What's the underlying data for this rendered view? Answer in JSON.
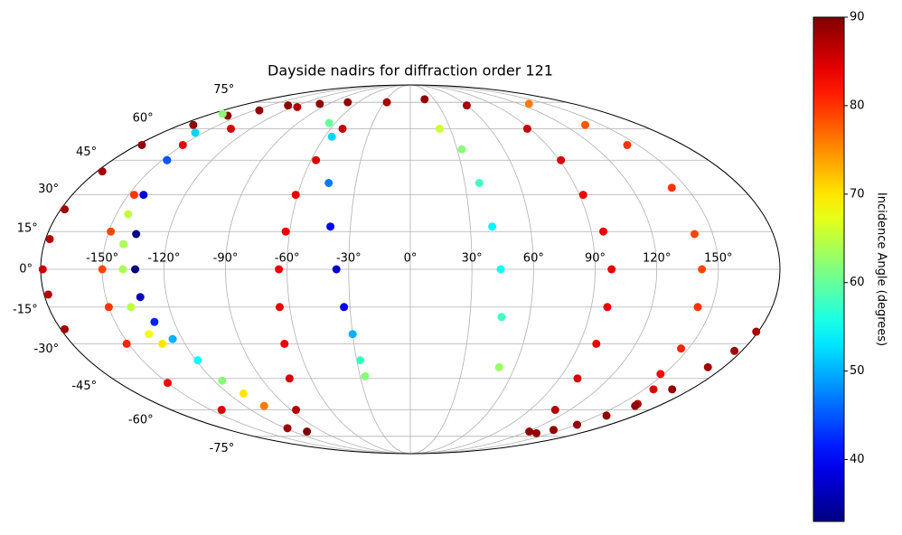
{
  "chart_data": {
    "type": "scatter",
    "projection": "mollweide",
    "title": "Dayside nadirs for diffraction order 121",
    "grid": true,
    "xlim": [
      -180,
      180
    ],
    "ylim": [
      -90,
      90
    ],
    "xticks": [
      {
        "value": -150,
        "label": "-150°"
      },
      {
        "value": -120,
        "label": "-120°"
      },
      {
        "value": -90,
        "label": "-90°"
      },
      {
        "value": -60,
        "label": "-60°"
      },
      {
        "value": -30,
        "label": "-30°"
      },
      {
        "value": 0,
        "label": "0°"
      },
      {
        "value": 30,
        "label": "30°"
      },
      {
        "value": 60,
        "label": "60°"
      },
      {
        "value": 90,
        "label": "90°"
      },
      {
        "value": 120,
        "label": "120°"
      },
      {
        "value": 150,
        "label": "150°"
      }
    ],
    "yticks": [
      {
        "value": -75,
        "label": "-75°"
      },
      {
        "value": -60,
        "label": "-60°"
      },
      {
        "value": -45,
        "label": "-45°"
      },
      {
        "value": -30,
        "label": "-30°"
      },
      {
        "value": -15,
        "label": "-15°"
      },
      {
        "value": 0,
        "label": "0°"
      },
      {
        "value": 15,
        "label": "15°"
      },
      {
        "value": 30,
        "label": "30°"
      },
      {
        "value": 45,
        "label": "45°"
      },
      {
        "value": 60,
        "label": "60°"
      },
      {
        "value": 75,
        "label": "75°"
      }
    ],
    "colorbar": {
      "label": "Incidence Angle (degrees)",
      "colormap": "jet",
      "lim": [
        33,
        90
      ],
      "ticks": [
        40,
        50,
        60,
        70,
        80,
        90
      ]
    },
    "series": [
      {
        "x": [
          -106,
          -86,
          -73,
          -67,
          -65,
          -64,
          -62,
          -61,
          -57,
          -51,
          -27,
          18,
          60,
          88,
          91,
          92,
          96,
          98,
          98,
          99,
          101,
          109,
          122
        ],
        "y": [
          -72,
          -60,
          -45,
          -30,
          -15,
          0,
          15,
          30,
          45,
          60,
          75,
          77,
          73,
          60,
          45,
          30,
          15,
          0,
          -15,
          -30,
          -45,
          -60,
          -72
        ],
        "values": [
          90,
          87,
          85,
          84,
          84,
          84,
          84,
          84,
          85,
          86,
          88,
          89,
          88,
          86,
          85,
          84,
          84,
          84,
          84,
          84,
          85,
          87,
          89
        ]
      },
      {
        "x": [
          -116,
          -135,
          -150,
          -147,
          -147,
          -149,
          -150,
          -150,
          -151,
          -150,
          -142,
          -118
        ],
        "y": [
          72,
          60,
          52,
          45,
          30,
          15,
          0,
          -15,
          -30,
          -47,
          -60,
          -70
        ],
        "values": [
          87,
          85,
          84,
          82,
          80,
          79,
          79,
          80,
          81,
          83,
          85,
          88
        ]
      },
      {
        "x": [
          131,
          137,
          143,
          142,
          141,
          142,
          143,
          146,
          148,
          156,
          162
        ],
        "y": [
          74,
          62,
          52,
          33,
          14,
          0,
          -15,
          -32,
          -43,
          -50,
          -57
        ],
        "values": [
          76,
          78,
          80,
          80,
          79,
          79,
          80,
          81,
          83,
          85,
          87
        ]
      },
      {
        "x": [
          134,
          142,
          151,
          157,
          163,
          168,
          171,
          176,
          179
        ],
        "y": [
          -73,
          -71,
          -68,
          -63,
          -58,
          -50,
          -40,
          -33,
          -25
        ],
        "values": [
          89,
          89,
          89,
          89,
          89,
          89,
          88,
          88,
          88
        ]
      },
      {
        "x": [
          -178,
          -178,
          -179,
          -178,
          -178,
          -177,
          -177,
          -170,
          -161,
          -145,
          -130,
          -100,
          -72
        ],
        "y": [
          -24,
          -10,
          0,
          12,
          24,
          40,
          52,
          62,
          67,
          70,
          73,
          74,
          75
        ],
        "values": [
          88,
          87,
          86,
          87,
          88,
          88,
          89,
          89,
          89,
          89,
          89,
          89,
          89
        ]
      },
      {
        "x": [
          -170,
          -156,
          -147,
          -142,
          -136,
          -134,
          -133,
          -130,
          -125,
          -119,
          -115,
          -110,
          -106
        ],
        "y": [
          68,
          58,
          45,
          30,
          14,
          0,
          -11,
          -21,
          -28,
          -37,
          -46,
          -52,
          -58
        ],
        "values": [
          62,
          52,
          45,
          38,
          33,
          33,
          36,
          42,
          50,
          55,
          62,
          70,
          76
        ]
      },
      {
        "x": [
          -144,
          -141,
          -140,
          -139,
          -136,
          -132
        ],
        "y": [
          22,
          10,
          0,
          -15,
          -26,
          -30
        ],
        "values": [
          65,
          64,
          64,
          65,
          68,
          70
        ]
      },
      {
        "x": [
          -65,
          -55,
          -45,
          -40,
          -36,
          -33,
          -30,
          -28,
          -27
        ],
        "y": [
          63,
          56,
          35,
          17,
          0,
          -15,
          -26,
          -37,
          -44
        ],
        "values": [
          60,
          52,
          47,
          40,
          37,
          40,
          50,
          58,
          62
        ]
      },
      {
        "x": [
          22,
          33,
          38,
          41,
          44,
          46,
          51
        ],
        "y": [
          60,
          50,
          35,
          17,
          0,
          -19,
          -40
        ],
        "values": [
          66,
          62,
          58,
          54,
          55,
          58,
          63
        ]
      }
    ]
  }
}
